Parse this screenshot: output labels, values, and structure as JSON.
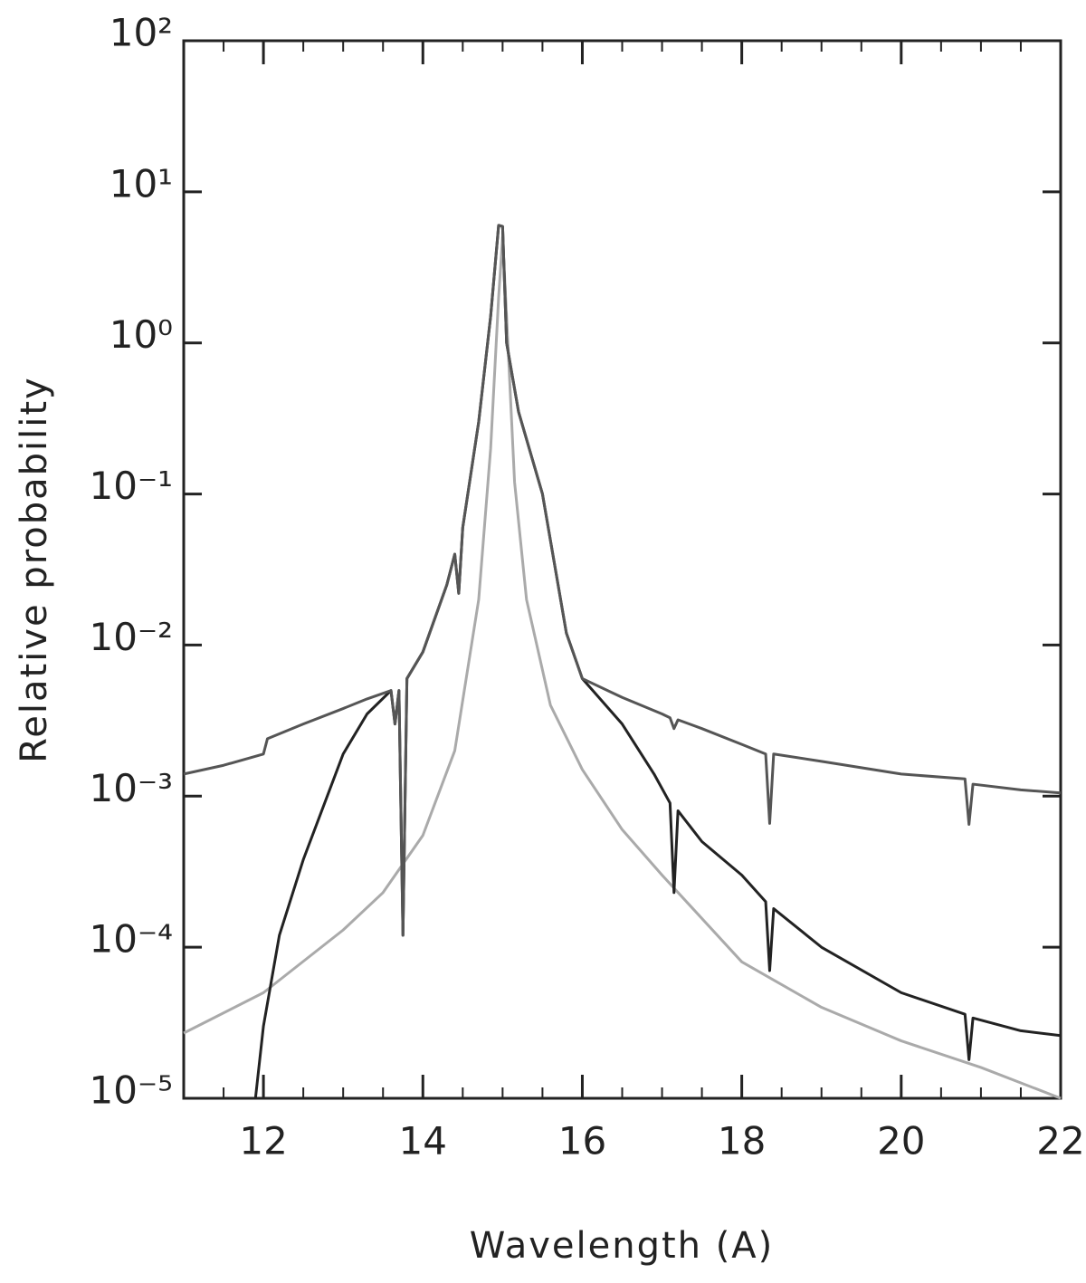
{
  "chart_data": {
    "type": "line",
    "xlabel": "Wavelength (A)",
    "ylabel": "Relative probability",
    "xlim": [
      11,
      22
    ],
    "xticks": [
      12,
      14,
      16,
      18,
      20,
      22
    ],
    "ylim": [
      1e-05,
      100
    ],
    "yscale": "log",
    "yticks": [
      {
        "value": 1e-05,
        "label": "10⁻⁵"
      },
      {
        "value": 0.0001,
        "label": "10⁻⁴"
      },
      {
        "value": 0.001,
        "label": "10⁻³"
      },
      {
        "value": 0.01,
        "label": "10⁻²"
      },
      {
        "value": 0.1,
        "label": "10⁻¹"
      },
      {
        "value": 1,
        "label": "10⁰"
      },
      {
        "value": 10,
        "label": "10¹"
      },
      {
        "value": 100,
        "label": "10²"
      }
    ],
    "grid": false,
    "series": [
      {
        "color": "#555555",
        "x": [
          11,
          11.5,
          12,
          12.05,
          12.5,
          13,
          13.3,
          13.6,
          13.65,
          13.7,
          13.75,
          13.8,
          14,
          14.3,
          14.4,
          14.45,
          14.5,
          14.7,
          14.85,
          14.95,
          15,
          15.05,
          15.2,
          15.5,
          15.8,
          16,
          16.5,
          17,
          17.1,
          17.15,
          17.2,
          17.5,
          18,
          18.3,
          18.35,
          18.4,
          19,
          20,
          20.8,
          20.85,
          20.9,
          21.5,
          22
        ],
        "values": [
          0.0014,
          0.0016,
          0.0019,
          0.0024,
          0.003,
          0.0038,
          0.0044,
          0.005,
          0.003,
          0.005,
          0.00012,
          0.006,
          0.009,
          0.025,
          0.04,
          0.022,
          0.06,
          0.3,
          1.5,
          6,
          5.9,
          1,
          0.35,
          0.1,
          0.012,
          0.006,
          0.0045,
          0.0035,
          0.0033,
          0.0028,
          0.0032,
          0.0028,
          0.0022,
          0.0019,
          0.00066,
          0.0019,
          0.0017,
          0.0014,
          0.0013,
          0.00065,
          0.0012,
          0.0011,
          0.00105
        ]
      },
      {
        "color": "#222222",
        "x": [
          11.9,
          12,
          12.2,
          12.5,
          13,
          13.3,
          13.6,
          13.65,
          13.7,
          13.75,
          13.8,
          14,
          14.3,
          14.4,
          14.45,
          14.5,
          14.7,
          14.85,
          14.95,
          15,
          15.05,
          15.2,
          15.5,
          15.8,
          16,
          16.5,
          16.9,
          17.1,
          17.15,
          17.2,
          17.5,
          18,
          18.3,
          18.35,
          18.4,
          19,
          20,
          20.8,
          20.85,
          20.9,
          21.5,
          22
        ],
        "values": [
          1e-05,
          3e-05,
          0.00012,
          0.00038,
          0.0019,
          0.0035,
          0.005,
          0.003,
          0.005,
          0.00012,
          0.006,
          0.009,
          0.025,
          0.04,
          0.022,
          0.06,
          0.3,
          1.5,
          6,
          5.9,
          1,
          0.35,
          0.1,
          0.012,
          0.006,
          0.003,
          0.0014,
          0.0009,
          0.00023,
          0.0008,
          0.0005,
          0.0003,
          0.0002,
          7e-05,
          0.00018,
          0.0001,
          5e-05,
          3.6e-05,
          1.8e-05,
          3.4e-05,
          2.8e-05,
          2.6e-05
        ]
      },
      {
        "color": "#aaaaaa",
        "x": [
          11,
          12,
          13,
          13.5,
          14,
          14.4,
          14.7,
          14.85,
          14.95,
          15,
          15.05,
          15.15,
          15.3,
          15.6,
          16,
          16.5,
          17,
          18,
          19,
          20,
          21,
          22
        ],
        "values": [
          2.7e-05,
          5e-05,
          0.00013,
          0.00023,
          0.00055,
          0.002,
          0.02,
          0.2,
          2,
          5,
          1.5,
          0.12,
          0.02,
          0.004,
          0.0015,
          0.0006,
          0.0003,
          8e-05,
          4e-05,
          2.4e-05,
          1.6e-05,
          1e-05
        ]
      }
    ]
  }
}
